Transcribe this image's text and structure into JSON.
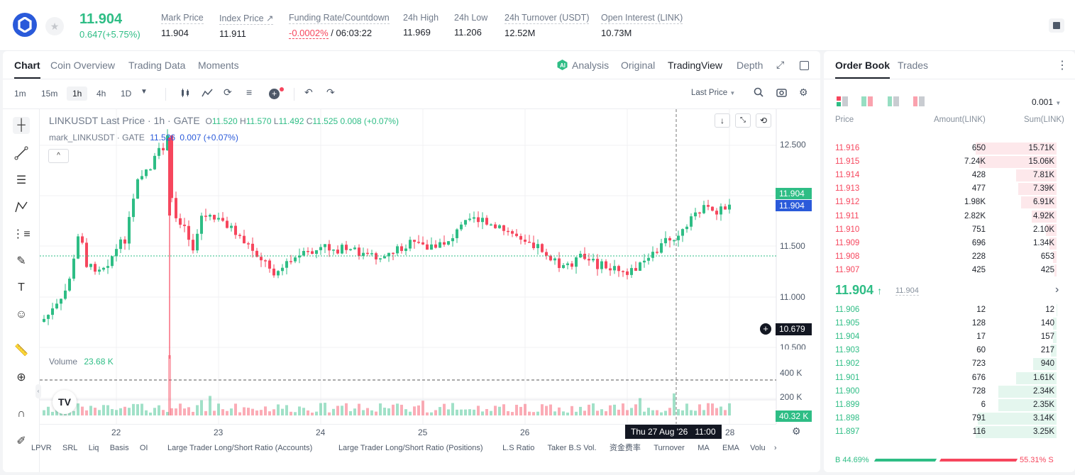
{
  "header": {
    "price": "11.904",
    "change": "0.647(+5.75%)",
    "stats": [
      {
        "label": "Mark Price",
        "value": "11.904"
      },
      {
        "label": "Index Price ↗",
        "value": "11.911"
      },
      {
        "label": "Funding Rate/Countdown",
        "value_neg": "-0.0002%",
        "value": " / 06:03:22"
      },
      {
        "label": "24h High",
        "value": "11.969"
      },
      {
        "label": "24h Low",
        "value": "11.206"
      },
      {
        "label": "24h Turnover (USDT)",
        "value": "12.52M"
      },
      {
        "label": "Open Interest (LINK)",
        "value": "10.73M"
      }
    ]
  },
  "chart_tabs": [
    "Chart",
    "Coin Overview",
    "Trading Data",
    "Moments"
  ],
  "view_tabs": [
    "Analysis",
    "Original",
    "TradingView",
    "Depth"
  ],
  "timeframes": [
    "1m",
    "15m",
    "1h",
    "4h",
    "1D"
  ],
  "last_price_select": "Last Price",
  "legend": {
    "title": "LINKUSDT Last Price · 1h · GATE",
    "o_label": "O",
    "o": "11.520",
    "h_label": "H",
    "h": "11.570",
    "l_label": "L",
    "l": "11.492",
    "c_label": "C",
    "c": "11.525",
    "chg": "0.008 (+0.07%)",
    "mark_label": "mark_LINKUSDT · GATE",
    "mark_val": "11.526",
    "mark_chg": "0.007 (+0.07%)",
    "volume_label": "Volume",
    "volume_val": "23.68 K"
  },
  "price_axis": [
    "12.500",
    "11.500",
    "11.000",
    "10.500"
  ],
  "price_tags": {
    "last": "11.904",
    "mark": "11.904",
    "cross": "10.679"
  },
  "vol_axis": [
    "400 K",
    "200 K"
  ],
  "vol_tag": "40.32 K",
  "time_axis": [
    "22",
    "23",
    "24",
    "25",
    "26",
    "28"
  ],
  "crosshair_time": "Thu 27 Aug '26   11:00",
  "indicators": [
    "LPVR",
    "SRL",
    "Liq",
    "Basis",
    "OI",
    "Large Trader Long/Short Ratio (Accounts)",
    "Large Trader Long/Short Ratio (Positions)",
    "L.S Ratio",
    "Taker B.S Vol.",
    "资金费率",
    "Turnover",
    "MA",
    "EMA",
    "Volu"
  ],
  "orderbook": {
    "tabs": [
      "Order Book",
      "Trades"
    ],
    "precision": "0.001",
    "cols": [
      "Price",
      "Amount(LINK)",
      "Sum(LINK)"
    ],
    "asks": [
      {
        "p": "11.916",
        "a": "650",
        "s": "15.71K",
        "depth": 1.0
      },
      {
        "p": "11.915",
        "a": "7.24K",
        "s": "15.06K",
        "depth": 0.96
      },
      {
        "p": "11.914",
        "a": "428",
        "s": "7.81K",
        "depth": 0.5
      },
      {
        "p": "11.913",
        "a": "477",
        "s": "7.39K",
        "depth": 0.47
      },
      {
        "p": "11.912",
        "a": "1.98K",
        "s": "6.91K",
        "depth": 0.44
      },
      {
        "p": "11.911",
        "a": "2.82K",
        "s": "4.92K",
        "depth": 0.31
      },
      {
        "p": "11.910",
        "a": "751",
        "s": "2.10K",
        "depth": 0.13
      },
      {
        "p": "11.909",
        "a": "696",
        "s": "1.34K",
        "depth": 0.085
      },
      {
        "p": "11.908",
        "a": "228",
        "s": "653",
        "depth": 0.042
      },
      {
        "p": "11.907",
        "a": "425",
        "s": "425",
        "depth": 0.027
      }
    ],
    "mid": {
      "price": "11.904",
      "mark": "11.904"
    },
    "bids": [
      {
        "p": "11.906",
        "a": "12",
        "s": "12",
        "depth": 0.004
      },
      {
        "p": "11.905",
        "a": "128",
        "s": "140",
        "depth": 0.043
      },
      {
        "p": "11.904",
        "a": "17",
        "s": "157",
        "depth": 0.048
      },
      {
        "p": "11.903",
        "a": "60",
        "s": "217",
        "depth": 0.067
      },
      {
        "p": "11.902",
        "a": "723",
        "s": "940",
        "depth": 0.29
      },
      {
        "p": "11.901",
        "a": "676",
        "s": "1.61K",
        "depth": 0.5
      },
      {
        "p": "11.900",
        "a": "728",
        "s": "2.34K",
        "depth": 0.72
      },
      {
        "p": "11.899",
        "a": "6",
        "s": "2.35K",
        "depth": 0.72
      },
      {
        "p": "11.898",
        "a": "791",
        "s": "3.14K",
        "depth": 0.97
      },
      {
        "p": "11.897",
        "a": "116",
        "s": "3.25K",
        "depth": 1.0
      }
    ],
    "buy_ratio": "B 44.69%",
    "sell_ratio": "55.31% S",
    "buy_pct": 44.69
  },
  "colors": {
    "up": "#2ebd85",
    "down": "#f6465d",
    "brand": "#2a5ada"
  }
}
